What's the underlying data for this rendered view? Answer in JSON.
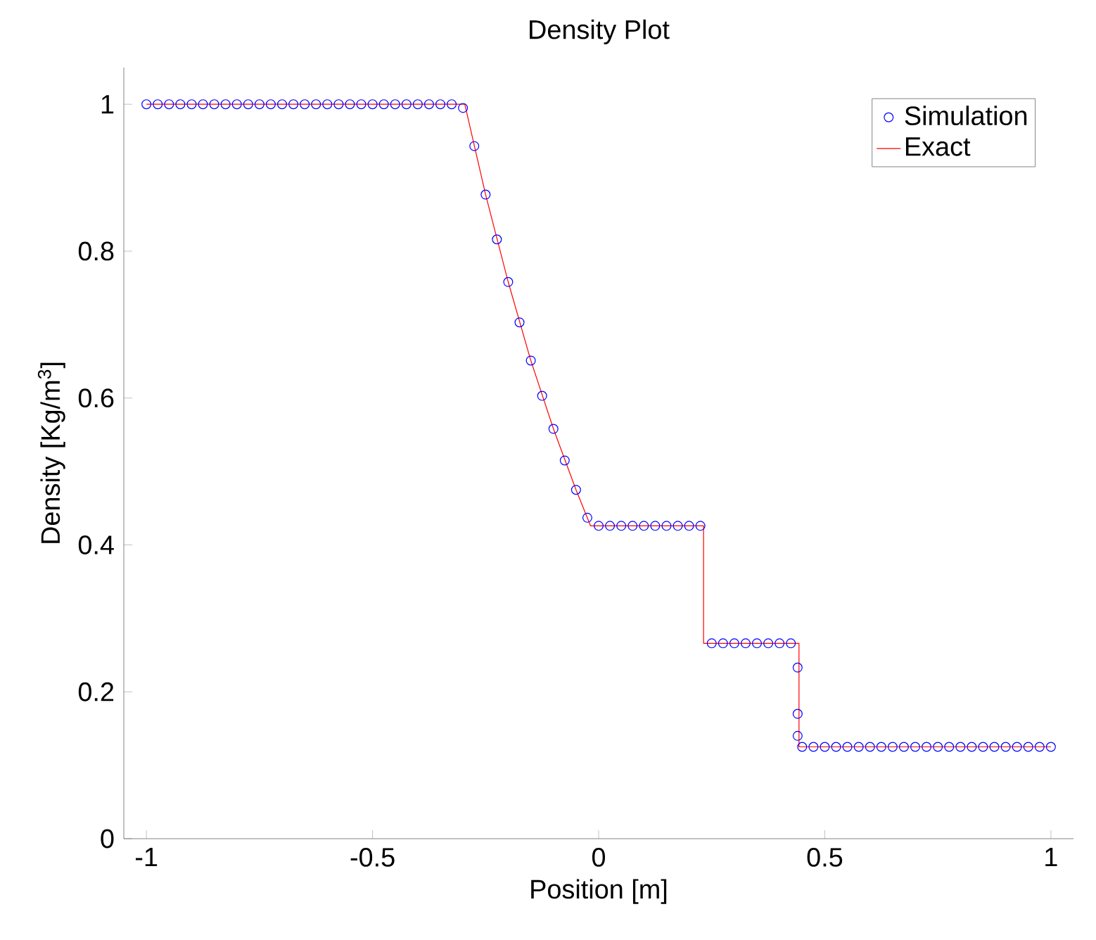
{
  "chart_data": {
    "type": "line",
    "title": "Density Plot",
    "xlabel": "Position [m]",
    "ylabel": "Density [Kg/m$^{3}$]",
    "xlim": [
      -1.05,
      1.05
    ],
    "ylim": [
      0,
      1.05
    ],
    "xticks": [
      -1,
      -0.5,
      0,
      0.5,
      1
    ],
    "yticks": [
      0,
      0.2,
      0.4,
      0.6,
      0.8,
      1
    ],
    "legend": "top right",
    "series": [
      {
        "name": "Simulation",
        "type": "scatter",
        "marker": "circle",
        "color": "#0000ff",
        "x": [
          -1,
          -0.975,
          -0.95,
          -0.925,
          -0.9,
          -0.875,
          -0.85,
          -0.825,
          -0.8,
          -0.775,
          -0.75,
          -0.725,
          -0.7,
          -0.675,
          -0.65,
          -0.625,
          -0.6,
          -0.575,
          -0.55,
          -0.525,
          -0.5,
          -0.475,
          -0.45,
          -0.425,
          -0.4,
          -0.375,
          -0.35,
          -0.325,
          -0.3,
          -0.275,
          -0.25,
          -0.225,
          -0.2,
          -0.175,
          -0.15,
          -0.125,
          -0.1,
          -0.075,
          -0.05,
          -0.025,
          0,
          0.025,
          0.05,
          0.075,
          0.1,
          0.125,
          0.15,
          0.175,
          0.2,
          0.225,
          0.25,
          0.275,
          0.3,
          0.325,
          0.35,
          0.375,
          0.4,
          0.425,
          0.44,
          0.44,
          0.44,
          0.45,
          0.475,
          0.5,
          0.525,
          0.55,
          0.575,
          0.6,
          0.625,
          0.65,
          0.675,
          0.7,
          0.725,
          0.75,
          0.775,
          0.8,
          0.825,
          0.85,
          0.875,
          0.9,
          0.925,
          0.95,
          0.975,
          1
        ],
        "values": [
          1,
          1,
          1,
          1,
          1,
          1,
          1,
          1,
          1,
          1,
          1,
          1,
          1,
          1,
          1,
          1,
          1,
          1,
          1,
          1,
          1,
          1,
          1,
          1,
          1,
          1,
          1,
          1,
          0.995,
          0.943,
          0.877,
          0.816,
          0.758,
          0.703,
          0.651,
          0.603,
          0.558,
          0.515,
          0.475,
          0.437,
          0.426,
          0.426,
          0.426,
          0.426,
          0.426,
          0.426,
          0.426,
          0.426,
          0.426,
          0.426,
          0.266,
          0.266,
          0.266,
          0.266,
          0.266,
          0.266,
          0.266,
          0.266,
          0.233,
          0.17,
          0.14,
          0.125,
          0.125,
          0.125,
          0.125,
          0.125,
          0.125,
          0.125,
          0.125,
          0.125,
          0.125,
          0.125,
          0.125,
          0.125,
          0.125,
          0.125,
          0.125,
          0.125,
          0.125,
          0.125,
          0.125,
          0.125,
          0.125,
          0.125
        ]
      },
      {
        "name": "Exact",
        "marker": "none",
        "color": "#ff0000",
        "x": [
          -1,
          -0.296,
          -0.25,
          -0.2,
          -0.15,
          -0.1,
          -0.05,
          -0.018,
          0.232,
          0.232,
          0.443,
          0.443,
          1
        ],
        "values": [
          1,
          1,
          0.877,
          0.758,
          0.651,
          0.558,
          0.475,
          0.426,
          0.426,
          0.266,
          0.266,
          0.125,
          0.125
        ]
      }
    ]
  }
}
